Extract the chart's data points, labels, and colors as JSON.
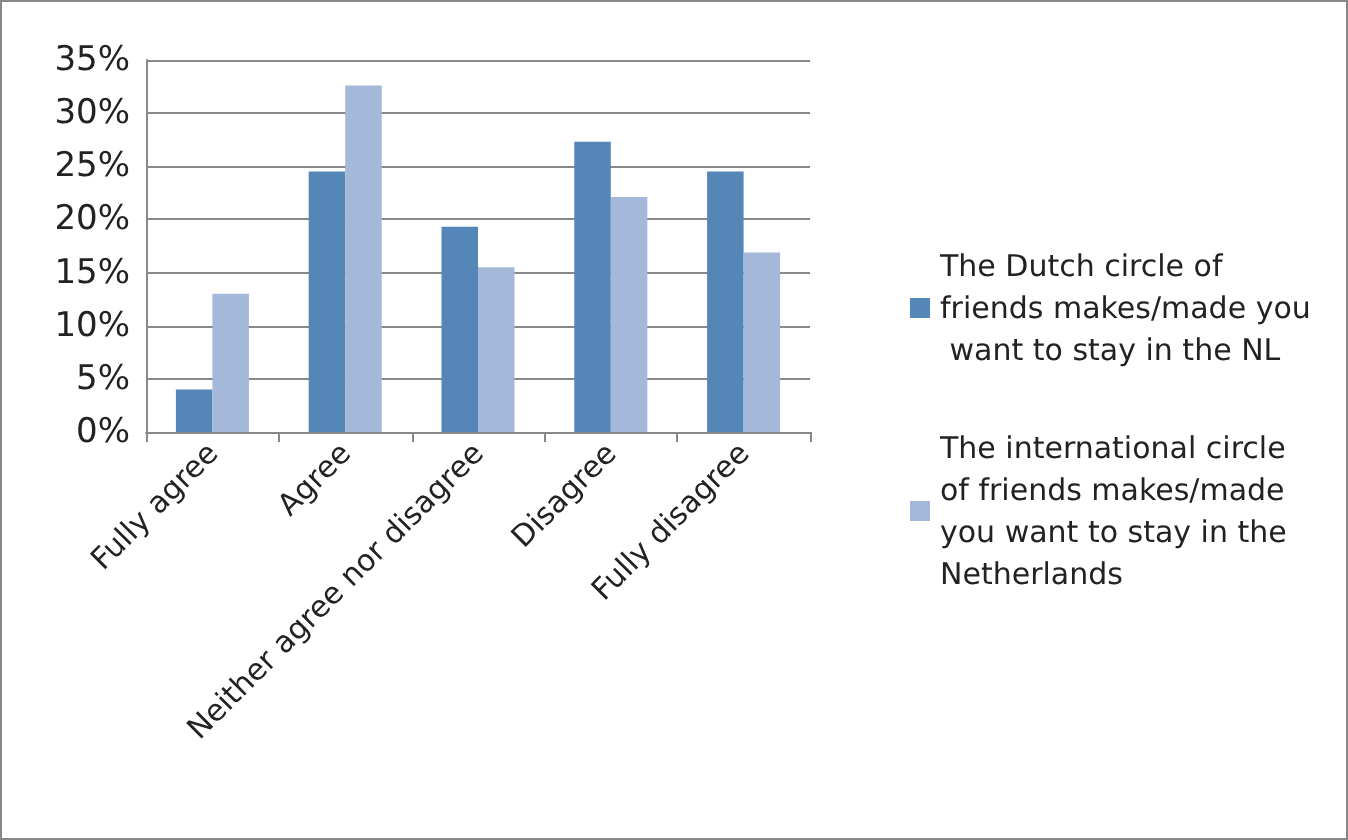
{
  "chart_data": {
    "type": "bar",
    "categories": [
      "Fully agree",
      "Agree",
      "Neither agree nor disagree",
      "Disagree",
      "Fully disagree"
    ],
    "series": [
      {
        "name": "The Dutch circle of friends makes/made you want to stay in the NL",
        "color": "#5586b8",
        "values": [
          4.0,
          24.5,
          19.3,
          27.3,
          24.5
        ]
      },
      {
        "name": "The international circle of friends makes/made you want to stay in the Netherlands",
        "color": "#a4b8da",
        "values": [
          13.0,
          32.6,
          15.5,
          22.1,
          16.9
        ]
      }
    ],
    "ylim": [
      0,
      35
    ],
    "yticks": [
      {
        "value": 0,
        "label": "0%"
      },
      {
        "value": 5,
        "label": "5%"
      },
      {
        "value": 10,
        "label": "10%"
      },
      {
        "value": 15,
        "label": "15%"
      },
      {
        "value": 20,
        "label": "20%"
      },
      {
        "value": 25,
        "label": "25%"
      },
      {
        "value": 30,
        "label": "30%"
      },
      {
        "value": 35,
        "label": "35%"
      }
    ],
    "grid": "y",
    "legend": "right"
  }
}
